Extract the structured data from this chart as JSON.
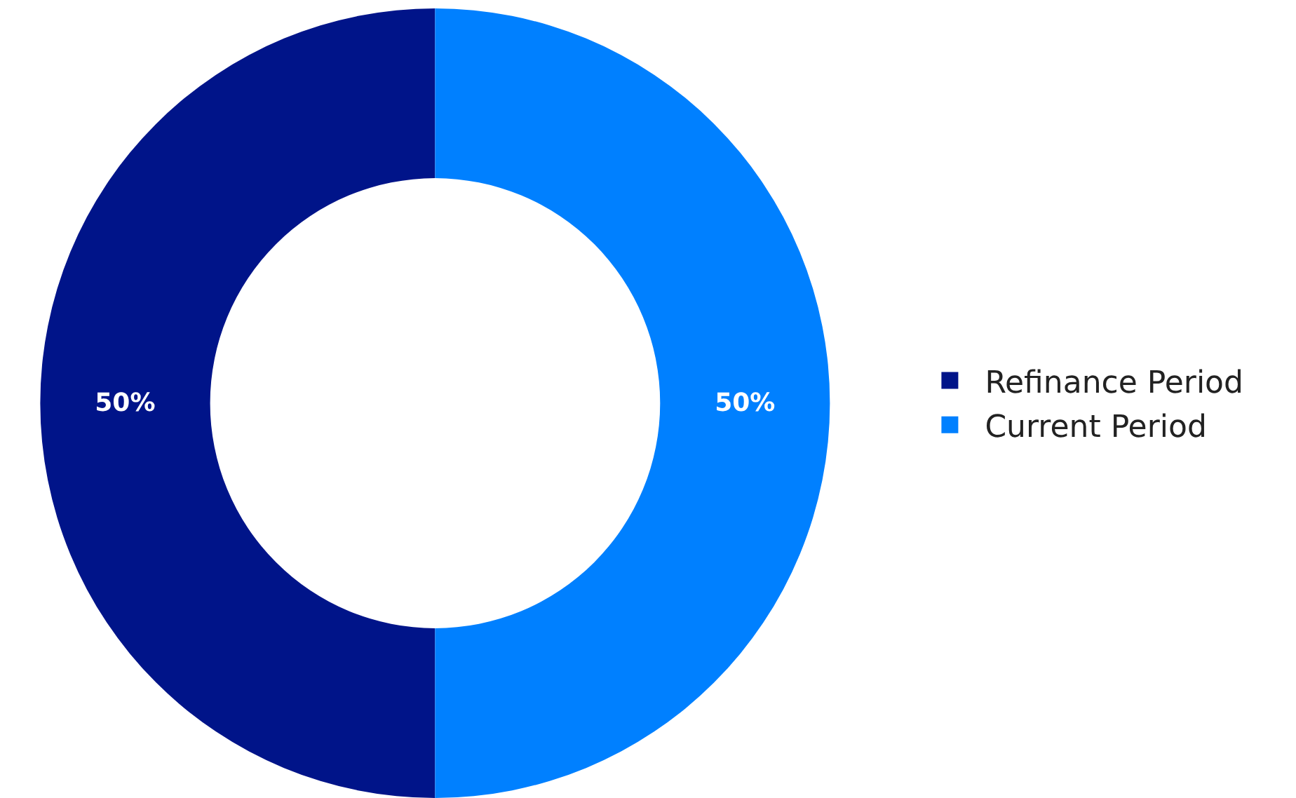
{
  "chart_data": {
    "type": "donut",
    "categories": [
      "Refinance Period",
      "Current Period"
    ],
    "values": [
      50,
      50
    ],
    "colors": [
      "#001489",
      "#0080ff"
    ],
    "value_labels": [
      "50%",
      "50%"
    ],
    "legend": "right"
  }
}
